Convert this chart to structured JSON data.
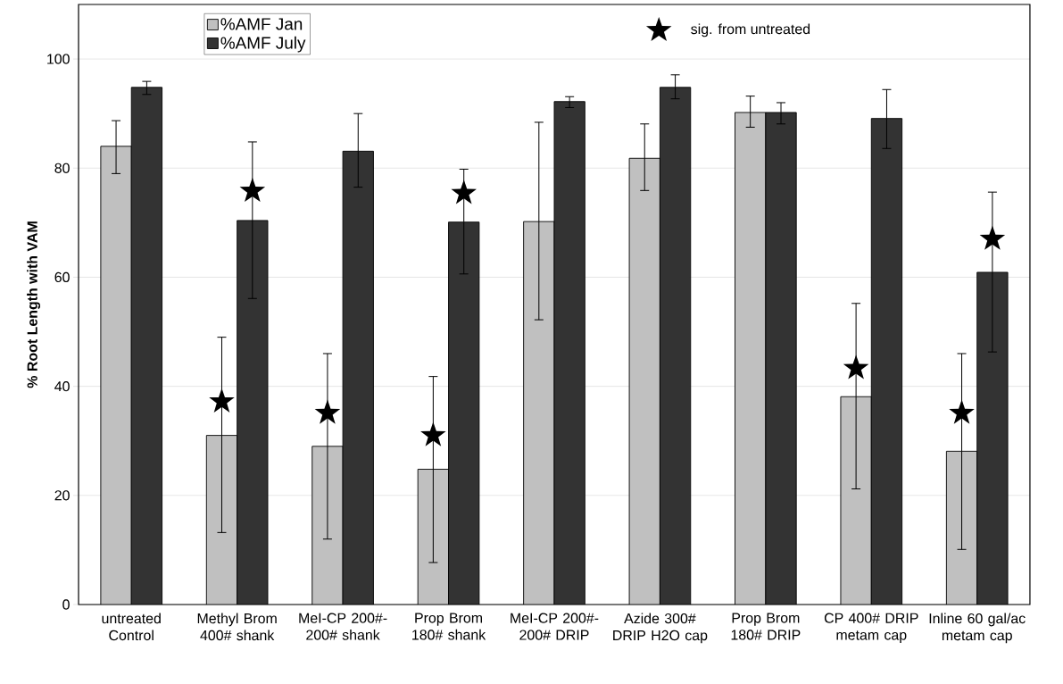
{
  "chart_data": {
    "type": "bar",
    "ylabel": "% Root Length with VAM",
    "categories": [
      "untreated Control",
      "Methyl Brom 400# shank",
      "MeI-CP 200#-200# shank",
      "Prop Brom 180# shank",
      "MeI-CP 200#-200# DRIP",
      "Azide 300# DRIP H2O cap",
      "Prop Brom 180# DRIP",
      "CP 400# DRIP metam cap",
      "Inline 60 gal/ac metam cap"
    ],
    "series": [
      {
        "name": "%AMF Jan",
        "color": "#c0c0c0",
        "values": [
          84,
          31,
          29,
          24.8,
          70.2,
          81.8,
          90.2,
          38.1,
          28.1
        ],
        "errors": [
          [
            79,
            88.7
          ],
          [
            13.2,
            49
          ],
          [
            12,
            46
          ],
          [
            7.7,
            41.8
          ],
          [
            52.2,
            88.4
          ],
          [
            75.9,
            88.1
          ],
          [
            87.5,
            93.2
          ],
          [
            21.2,
            55.2
          ],
          [
            10.1,
            46
          ]
        ]
      },
      {
        "name": "%AMF July",
        "color": "#333333",
        "values": [
          94.8,
          70.4,
          83.1,
          70.1,
          92.2,
          94.8,
          90.2,
          89.1,
          60.9
        ],
        "errors": [
          [
            93.5,
            95.9
          ],
          [
            56.1,
            84.8
          ],
          [
            76.5,
            90
          ],
          [
            60.6,
            79.8
          ],
          [
            91.1,
            93.1
          ],
          [
            92.7,
            97.1
          ],
          [
            88.1,
            92
          ],
          [
            83.6,
            94.4
          ],
          [
            46.3,
            75.6
          ]
        ]
      },
      {
        "type": "scatter",
        "name": "sig. from untreated",
        "color": "#000000",
        "values": [
          null,
          37.2,
          35.1,
          31,
          null,
          null,
          null,
          43.3,
          35.1
        ]
      },
      {
        "type": "scatter",
        "color": "#000000",
        "values": [
          null,
          75.8,
          null,
          75.4,
          null,
          null,
          null,
          null,
          67
        ]
      }
    ],
    "ylim": [
      0,
      110
    ],
    "yticks": [
      0,
      20,
      40,
      60,
      80,
      100
    ],
    "grid": "y",
    "legend": "top left",
    "marker": "star"
  }
}
